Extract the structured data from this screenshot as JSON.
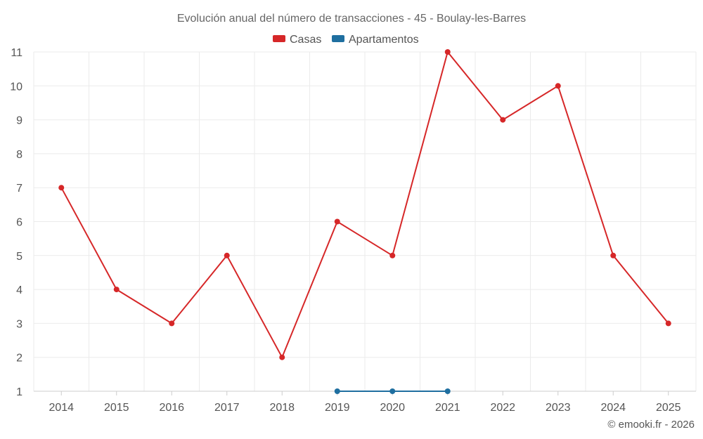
{
  "chart_data": {
    "type": "line",
    "title": "Evolución anual del número de transacciones - 45 - Boulay-les-Barres",
    "categories": [
      "2014",
      "2015",
      "2016",
      "2017",
      "2018",
      "2019",
      "2020",
      "2021",
      "2022",
      "2023",
      "2024",
      "2025"
    ],
    "series": [
      {
        "name": "Casas",
        "color": "#d62728",
        "values": [
          7,
          4,
          3,
          5,
          2,
          6,
          5,
          11,
          9,
          10,
          5,
          3
        ]
      },
      {
        "name": "Apartamentos",
        "color": "#1f6fa0",
        "values": [
          null,
          null,
          null,
          null,
          null,
          1,
          1,
          1,
          null,
          null,
          null,
          null
        ]
      }
    ],
    "y_ticks": [
      1,
      2,
      3,
      4,
      5,
      6,
      7,
      8,
      9,
      10,
      11
    ],
    "ylim": [
      1,
      11
    ],
    "xlabel": "",
    "ylabel": "",
    "grid": true,
    "legend_position": "top-center"
  },
  "credit": "© emooki.fr - 2026"
}
